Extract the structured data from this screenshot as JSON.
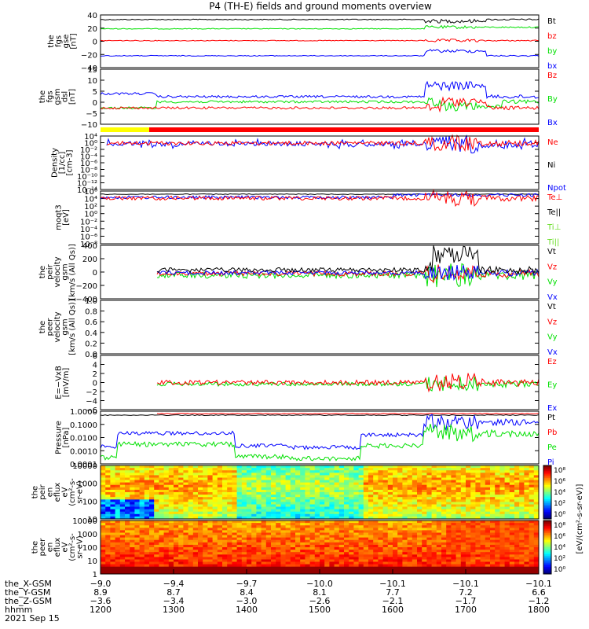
{
  "title": "P4 (TH-E) fields and ground moments overview",
  "colors": {
    "black": "#000000",
    "red": "#ff0000",
    "green": "#00e000",
    "blue": "#0000ff",
    "yellow": "#ffff00",
    "lime": "#66dd22"
  },
  "chart_data": [
    {
      "type": "line",
      "panel": "fgs-gse",
      "ylabel": [
        "the",
        "fgs",
        "gse",
        "[nT]"
      ],
      "ylim": [
        -40,
        40
      ],
      "ticks": [
        "40",
        "20",
        "0",
        "−20",
        "−40"
      ],
      "legend": [
        {
          "label": "Bt",
          "color": "#000000"
        },
        {
          "label": "bz",
          "color": "#ff0000"
        },
        {
          "label": "by",
          "color": "#00e000"
        },
        {
          "label": "bx",
          "color": "#0000ff"
        }
      ]
    },
    {
      "type": "line",
      "panel": "fgs-gsm-dsl",
      "ylabel": [
        "the",
        "fgs",
        "gsm",
        "dsl",
        "[nT]"
      ],
      "ylim": [
        -12,
        15
      ],
      "ticks": [
        "15",
        "10",
        "5",
        "0",
        "−5",
        "−10"
      ],
      "legend": [
        {
          "label": "Bz",
          "color": "#ff0000"
        },
        {
          "label": "By",
          "color": "#00e000"
        },
        {
          "label": "Bx",
          "color": "#0000ff"
        }
      ]
    },
    {
      "type": "line",
      "panel": "density",
      "ylabel": [
        "Density",
        "[1/cc]",
        "[cm-3]"
      ],
      "ylim": [
        -14,
        2
      ],
      "scale": "log",
      "ticks": [
        "10⁴",
        "10⁰",
        "10⁻²",
        "10⁻⁴",
        "10⁻⁶",
        "10⁻⁸",
        "10⁻¹⁰",
        "10⁻¹²",
        "10⁻¹⁴"
      ],
      "legend": [
        {
          "label": "Ne",
          "color": "#ff0000"
        },
        {
          "label": "Ni",
          "color": "#000000"
        },
        {
          "label": "Npot",
          "color": "#0000ff"
        }
      ]
    },
    {
      "type": "line",
      "panel": "temperature",
      "ylabel": [
        "moqt3",
        "[eV]"
      ],
      "ylim": [
        -8,
        6
      ],
      "scale": "log",
      "ticks": [
        "10⁶",
        "10⁴",
        "10²",
        "10⁰",
        "10⁻²",
        "10⁻⁴",
        "10⁻⁶",
        "10⁻⁸"
      ],
      "legend": [
        {
          "label": "Te⊥",
          "color": "#ff0000"
        },
        {
          "label": "Te||",
          "color": "#000000"
        },
        {
          "label": "Ti⊥",
          "color": "#66dd22"
        },
        {
          "label": "Ti||",
          "color": "#66dd22"
        }
      ]
    },
    {
      "type": "line",
      "panel": "peir-velocity",
      "ylabel": [
        "the",
        "peir",
        "velocity",
        "gsm",
        "[km/s (All Qs)]"
      ],
      "ylim": [
        -400,
        400
      ],
      "ticks": [
        "400",
        "200",
        "0",
        "−200",
        "−400"
      ],
      "legend": [
        {
          "label": "Vt",
          "color": "#000000"
        },
        {
          "label": "Vz",
          "color": "#ff0000"
        },
        {
          "label": "Vy",
          "color": "#00e000"
        },
        {
          "label": "Vx",
          "color": "#0000ff"
        }
      ]
    },
    {
      "type": "line",
      "panel": "peer-velocity",
      "ylabel": [
        "the",
        "peer",
        "velocity",
        "gsm",
        "[km/s (All Qs)]"
      ],
      "ylim": [
        0,
        1
      ],
      "ticks": [
        "1.0",
        "0.8",
        "0.6",
        "0.4",
        "0.2",
        "0.0"
      ],
      "legend": [
        {
          "label": "Vt",
          "color": "#000000"
        },
        {
          "label": "Vz",
          "color": "#ff0000"
        },
        {
          "label": "Vy",
          "color": "#00e000"
        },
        {
          "label": "Vx",
          "color": "#0000ff"
        }
      ]
    },
    {
      "type": "line",
      "panel": "efield",
      "ylabel": [
        "E=−VxB",
        "[mV/m]"
      ],
      "ylim": [
        -6,
        6
      ],
      "ticks": [
        "6",
        "4",
        "2",
        "0",
        "−2",
        "−4",
        "−6"
      ],
      "legend": [
        {
          "label": "Ez",
          "color": "#ff0000"
        },
        {
          "label": "Ey",
          "color": "#00e000"
        },
        {
          "label": "Ex",
          "color": "#0000ff"
        }
      ]
    },
    {
      "type": "line",
      "panel": "pressure",
      "ylabel": [
        "Pressure",
        "[nPa]"
      ],
      "ylim": [
        -4,
        0
      ],
      "scale": "log",
      "ticks": [
        "1.0000",
        "0.1000",
        "0.0100",
        "0.0010",
        "0.0001"
      ],
      "legend": [
        {
          "label": "Pt",
          "color": "#000000"
        },
        {
          "label": "Pb",
          "color": "#ff0000"
        },
        {
          "label": "Pe",
          "color": "#00e000"
        },
        {
          "label": "Pi",
          "color": "#0000ff"
        }
      ]
    },
    {
      "type": "heatmap",
      "panel": "peir-eflux",
      "ylabel": [
        "the",
        "peir",
        "en",
        "eflux",
        "eV",
        "(cm²-s-",
        "sr-eV)"
      ],
      "ylim": [
        1,
        4.3
      ],
      "scale": "log",
      "ticks": [
        "10000",
        "1000",
        "100",
        "10"
      ],
      "colorbar": {
        "label": "[eV/(cm²-s-sr-eV)]",
        "ticks": [
          "10⁸",
          "10⁶",
          "10⁴",
          "10²",
          "10⁰"
        ]
      }
    },
    {
      "type": "heatmap",
      "panel": "peer-eflux",
      "ylabel": [
        "the",
        "peer",
        "en",
        "eflux",
        "eV",
        "(cm²-s-",
        "sr-eV)"
      ],
      "ylim": [
        0,
        4.3
      ],
      "scale": "log",
      "ticks": [
        "10000",
        "1000",
        "100",
        "10",
        "1"
      ],
      "colorbar": {
        "label": "[eV/(cm²-s-sr-eV)]",
        "ticks": [
          "10⁸",
          "10⁶",
          "10⁴",
          "10²",
          "10⁰"
        ]
      }
    }
  ],
  "xaxis": {
    "row_labels": [
      "the_X-GSM",
      "the_Y-GSM",
      "the_Z-GSM",
      "hhmm"
    ],
    "date": "2021 Sep 15",
    "columns": [
      {
        "x": "−9.0",
        "y": "8.9",
        "z": "−3.6",
        "t": "1200"
      },
      {
        "x": "−9.4",
        "y": "8.7",
        "z": "−3.4",
        "t": "1300"
      },
      {
        "x": "−9.7",
        "y": "8.4",
        "z": "−3.0",
        "t": "1400"
      },
      {
        "x": "−10.0",
        "y": "8.1",
        "z": "−2.6",
        "t": "1500"
      },
      {
        "x": "−10.1",
        "y": "7.7",
        "z": "−2.1",
        "t": "1600"
      },
      {
        "x": "−10.1",
        "y": "7.2",
        "z": "−1.7",
        "t": "1700"
      },
      {
        "x": "−10.1",
        "y": "6.6",
        "z": "−1.2",
        "t": "1800"
      }
    ]
  }
}
